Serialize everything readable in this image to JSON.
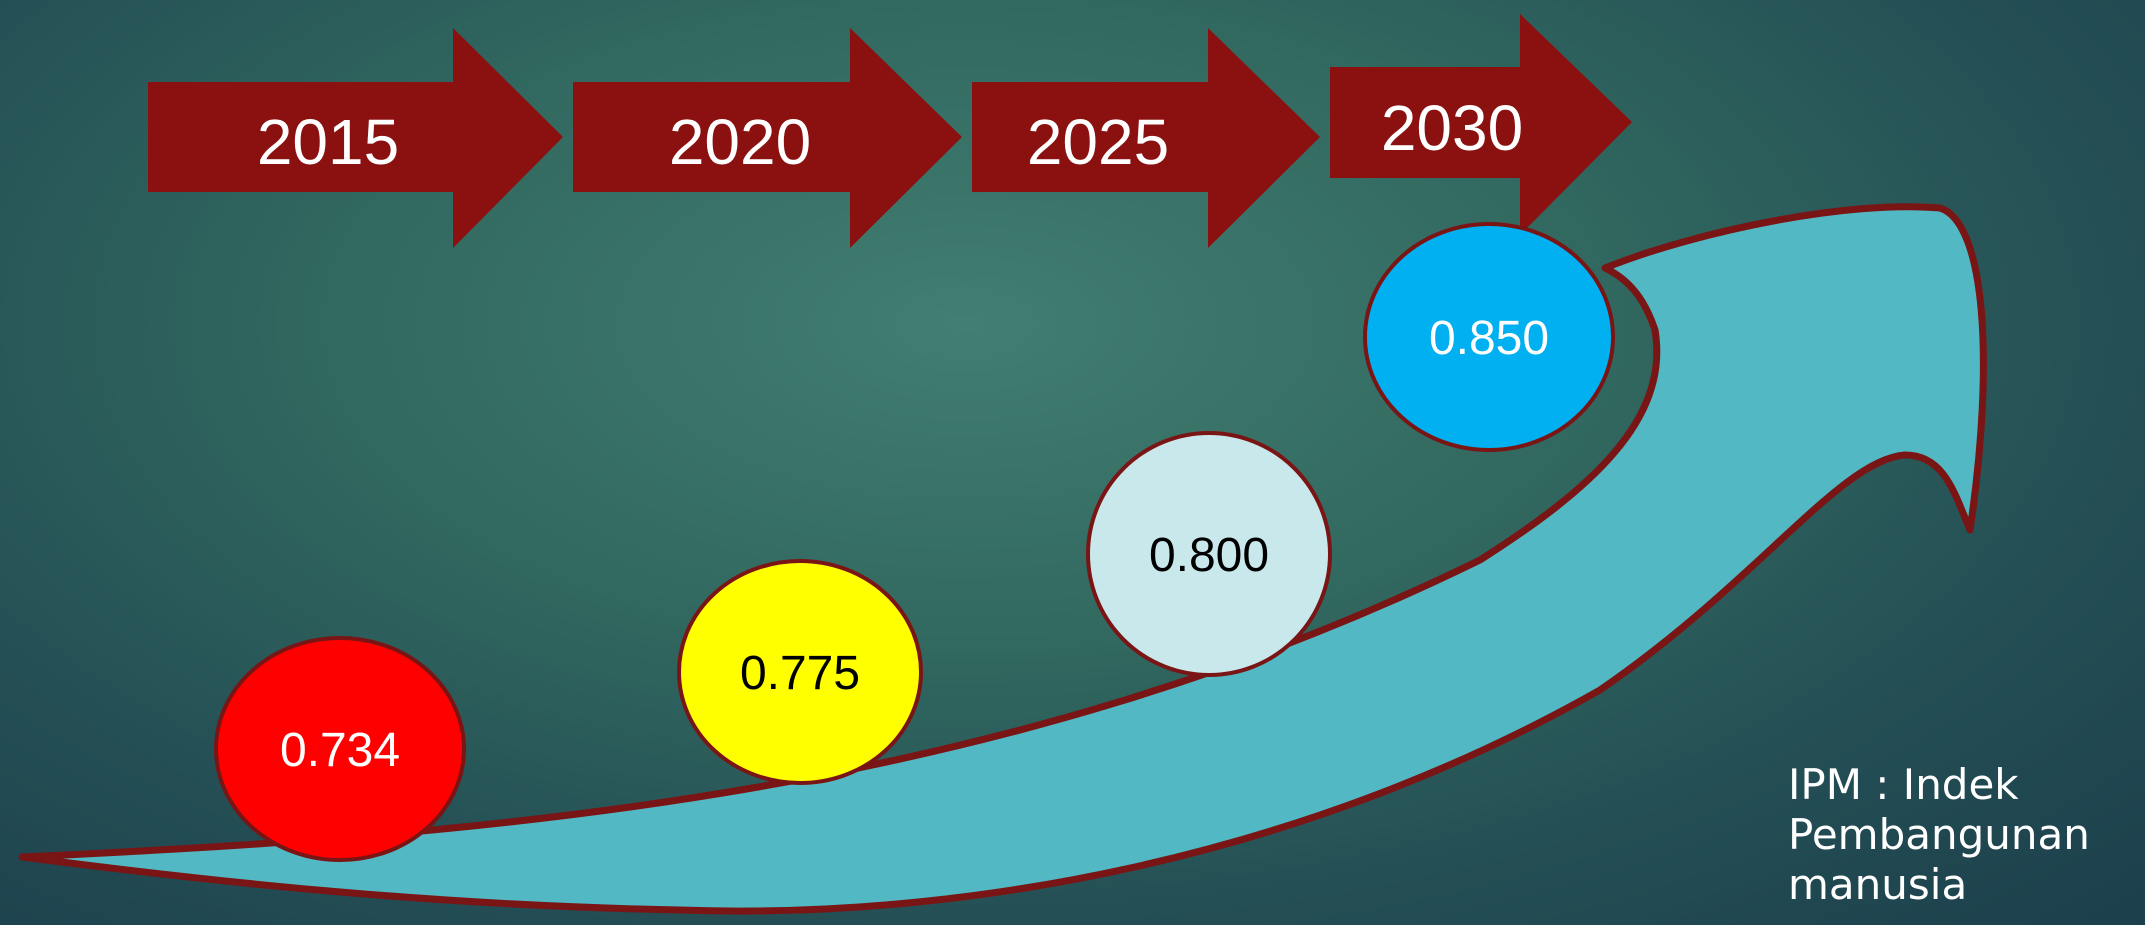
{
  "timeline": {
    "years": [
      "2015",
      "2020",
      "2025",
      "2030"
    ],
    "targets": [
      {
        "value": "0.734",
        "color": "#ff0000",
        "text_color": "#ffffff"
      },
      {
        "value": "0.775",
        "color": "#ffff00",
        "text_color": "#000000"
      },
      {
        "value": "0.800",
        "color": "#c9e8ec",
        "text_color": "#000000"
      },
      {
        "value": "0.850",
        "color": "#00b0f0",
        "text_color": "#ffffff"
      }
    ]
  },
  "colors": {
    "arrow_fill": "#8b1010",
    "growth_arrow_fill": "#52b8c3",
    "outline": "#7a1515"
  },
  "note": {
    "line1": "IPM : Indek",
    "line2": "Pembangunan",
    "line3": "manusia"
  }
}
